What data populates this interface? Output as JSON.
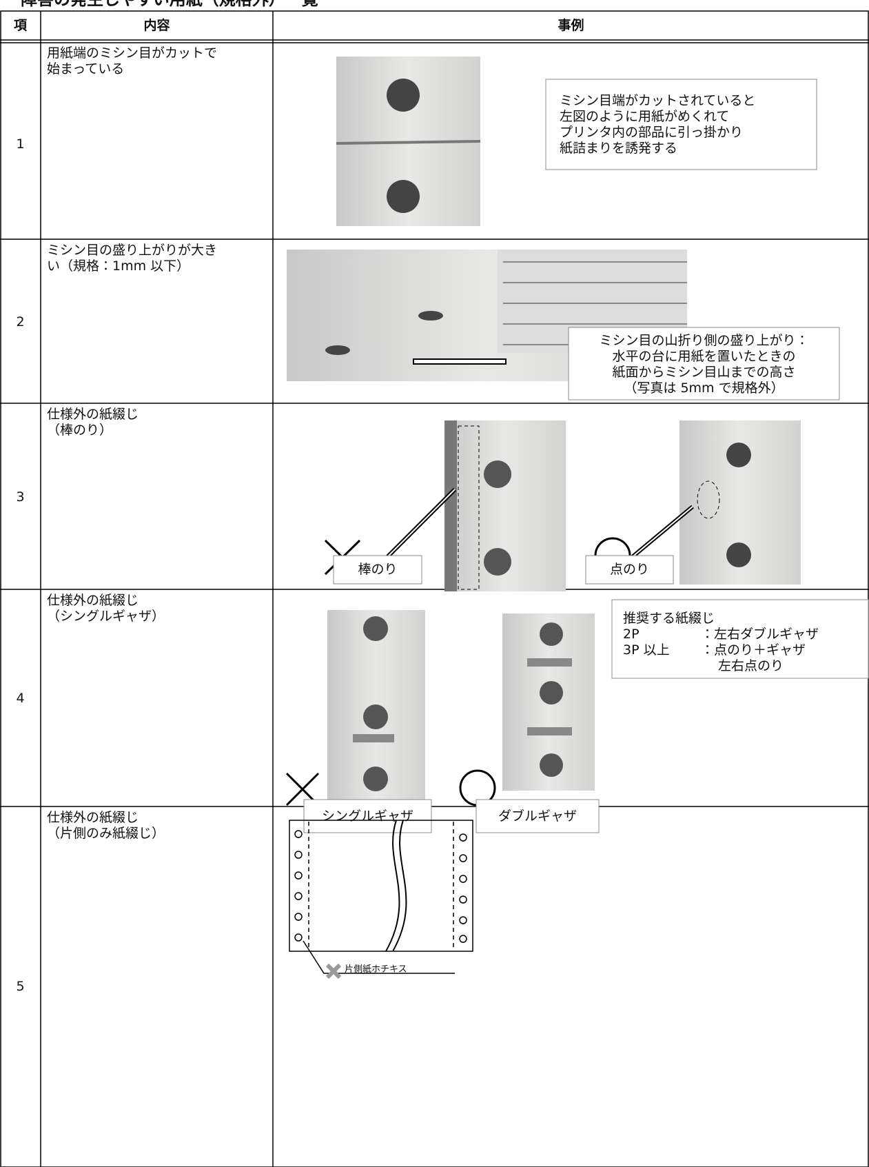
{
  "header": {
    "title": "障害の発生しやすい用紙（規格外）一覧"
  },
  "table": {
    "columns": [
      "項",
      "内容",
      "事例"
    ],
    "rows": [
      {
        "no": "1",
        "content": [
          "用紙端のミシン目がカットで",
          "始まっている"
        ],
        "callout": [
          "ミシン目端がカットされていると",
          "左図のように用紙がめくれて",
          "プリンタ内の部品に引っ掛かり",
          "紙詰まりを誘発する"
        ]
      },
      {
        "no": "2",
        "content": [
          "ミシン目の盛り上がりが大き",
          "い（規格：1mm 以下）"
        ],
        "callout": [
          "ミシン目の山折り側の盛り上がり：",
          "水平の台に用紙を置いたときの",
          "紙面からミシン目山までの高さ",
          "（写真は 5mm で規格外）"
        ]
      },
      {
        "no": "3",
        "content": [
          "仕様外の紙綴じ",
          "（棒のり）"
        ],
        "labels": [
          "棒のり",
          "点のり"
        ]
      },
      {
        "no": "4",
        "content": [
          "仕様外の紙綴じ",
          "（シングルギャザ）"
        ],
        "note": {
          "title": "推奨する紙綴じ",
          "items": [
            {
              "key": "2P",
              "text": [
                "：左右ダブルギャザ"
              ]
            },
            {
              "key": "3P 以上",
              "text": [
                "：点のり＋ギャザ",
                "左右点のり"
              ]
            }
          ]
        },
        "labels": [
          "シングルギャザ",
          "ダブルギャザ"
        ]
      },
      {
        "no": "5",
        "content": [
          "仕様外の紙綴じ",
          "（片側のみ紙綴じ）"
        ],
        "caption": "片側紙ホチキス"
      }
    ]
  }
}
